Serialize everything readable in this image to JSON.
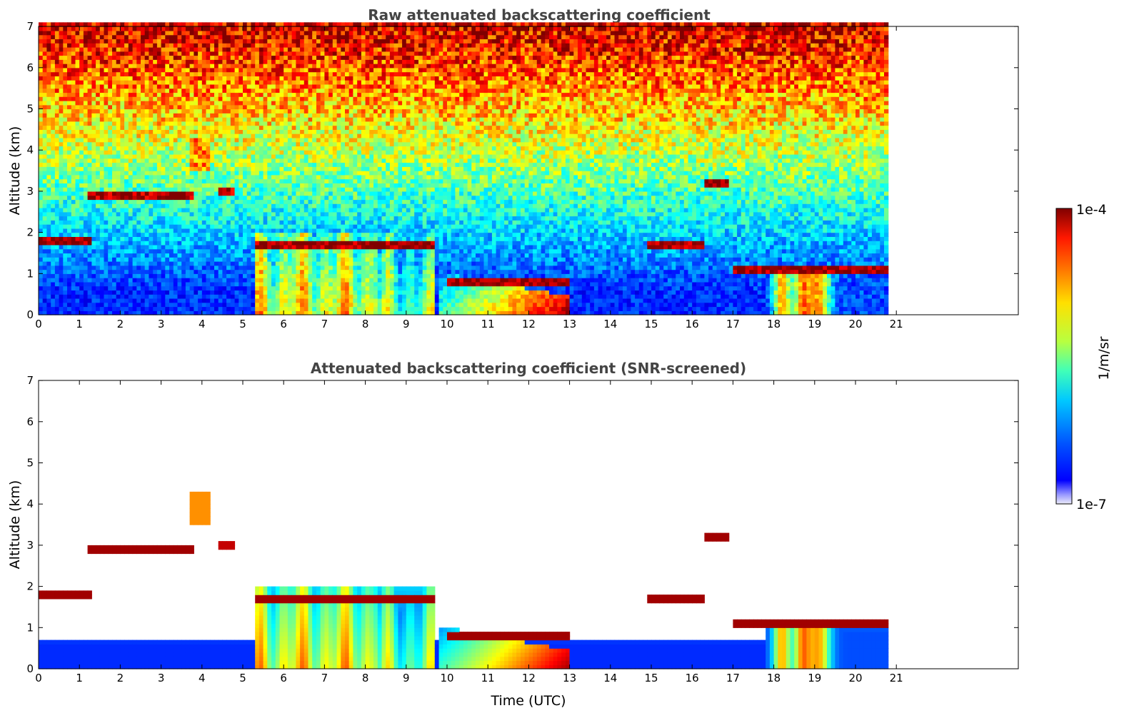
{
  "chart_data": [
    {
      "type": "heatmap",
      "title": "Raw attenuated backscattering coefficient",
      "xlabel": "",
      "ylabel": "Altitude (km)",
      "xlim": [
        0,
        24
      ],
      "ylim": [
        0,
        7
      ],
      "xticks": [
        "0",
        "1",
        "2",
        "3",
        "4",
        "5",
        "6",
        "7",
        "8",
        "9",
        "10",
        "11",
        "12",
        "13",
        "14",
        "15",
        "16",
        "17",
        "18",
        "19",
        "20",
        "21"
      ],
      "yticks": [
        "0",
        "1",
        "2",
        "3",
        "4",
        "5",
        "6",
        "7"
      ],
      "data_end_time": 20.8,
      "screened": false,
      "layers": [
        {
          "feature": "cloud",
          "x": [
            0,
            1.3
          ],
          "y": 1.82,
          "log10_beta": -4.1
        },
        {
          "feature": "cloud",
          "x": [
            1.2,
            3.8
          ],
          "y": 2.92,
          "log10_beta": -4.1
        },
        {
          "feature": "cloud",
          "x": [
            4.4,
            4.75
          ],
          "y": 3.03,
          "log10_beta": -4.2
        },
        {
          "feature": "aerosol",
          "x": [
            3.7,
            4.2
          ],
          "y": 3.9,
          "log10_beta": -4.8
        },
        {
          "feature": "cloud",
          "x": [
            5.3,
            9.7
          ],
          "y": 1.7,
          "log10_beta": -4.1
        },
        {
          "feature": "cloud",
          "x": [
            10,
            13
          ],
          "y": 0.8,
          "log10_beta": -4.1
        },
        {
          "feature": "cloud",
          "x": [
            14.9,
            16.3
          ],
          "y": 1.75,
          "log10_beta": -4.1
        },
        {
          "feature": "cloud",
          "x": [
            16.3,
            16.9
          ],
          "y": 3.2,
          "log10_beta": -4.1
        },
        {
          "feature": "cloud",
          "x": [
            17,
            20.8
          ],
          "y": 1.1,
          "log10_beta": -4.1
        }
      ]
    },
    {
      "type": "heatmap",
      "title": "Attenuated backscattering coefficient (SNR-screened)",
      "xlabel": "Time (UTC)",
      "ylabel": "Altitude (km)",
      "xlim": [
        0,
        24
      ],
      "ylim": [
        0,
        7
      ],
      "xticks": [
        "0",
        "1",
        "2",
        "3",
        "4",
        "5",
        "6",
        "7",
        "8",
        "9",
        "10",
        "11",
        "12",
        "13",
        "14",
        "15",
        "16",
        "17",
        "18",
        "19",
        "20",
        "21"
      ],
      "yticks": [
        "0",
        "1",
        "2",
        "3",
        "4",
        "5",
        "6",
        "7"
      ],
      "data_end_time": 20.8,
      "screened": true,
      "layers": [
        {
          "feature": "cloud",
          "x": [
            0,
            1.3
          ],
          "y": 1.82,
          "log10_beta": -4.1
        },
        {
          "feature": "cloud",
          "x": [
            1.2,
            3.8
          ],
          "y": 2.92,
          "log10_beta": -4.1
        },
        {
          "feature": "cloud",
          "x": [
            4.4,
            4.75
          ],
          "y": 3.03,
          "log10_beta": -4.2
        },
        {
          "feature": "aerosol",
          "x": [
            3.7,
            4.2
          ],
          "y": 3.9,
          "log10_beta": -4.8
        },
        {
          "feature": "cloud",
          "x": [
            5.3,
            9.7
          ],
          "y": 1.7,
          "log10_beta": -4.1
        },
        {
          "feature": "cloud",
          "x": [
            10,
            13
          ],
          "y": 0.8,
          "log10_beta": -4.1
        },
        {
          "feature": "cloud",
          "x": [
            14.9,
            16.3
          ],
          "y": 1.75,
          "log10_beta": -4.1
        },
        {
          "feature": "cloud",
          "x": [
            16.3,
            16.9
          ],
          "y": 3.2,
          "log10_beta": -4.1
        },
        {
          "feature": "cloud",
          "x": [
            17,
            20.8
          ],
          "y": 1.1,
          "log10_beta": -4.1
        }
      ]
    }
  ],
  "colorbar": {
    "label": "1/m/sr",
    "max_label": "1e-4",
    "min_label": "1e-7",
    "colormap": "jet",
    "scale": "log",
    "range": [
      1e-07,
      0.0001
    ]
  }
}
